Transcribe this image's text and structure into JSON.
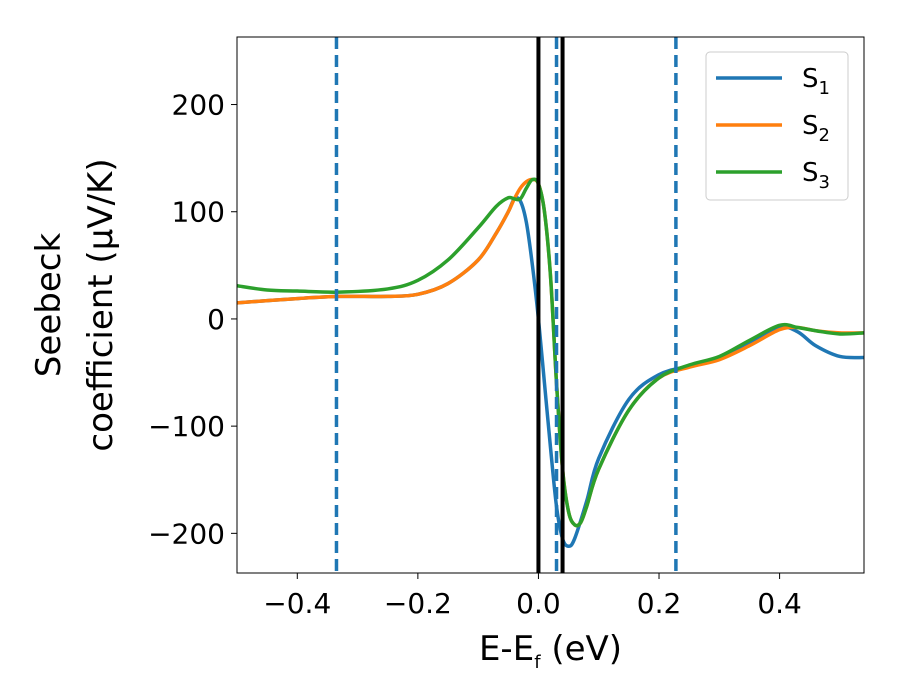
{
  "chart_data": {
    "type": "line",
    "xlabel": {
      "main": "E-E",
      "sub": "f",
      "unit": " (eV)"
    },
    "ylabel": {
      "line1": "Seebeck",
      "line2": "coefficient  (μV/K)"
    },
    "xlim": [
      -0.5,
      0.54
    ],
    "ylim": [
      -237,
      263
    ],
    "xticks": [
      -0.4,
      -0.2,
      0.0,
      0.2,
      0.4
    ],
    "xtick_labels": [
      "−0.4",
      "−0.2",
      "0.0",
      "0.2",
      "0.4"
    ],
    "yticks": [
      -200,
      -100,
      0,
      100,
      200
    ],
    "ytick_labels": [
      "−200",
      "−100",
      "0",
      "100",
      "200"
    ],
    "grid": false,
    "legend_position": "top-right",
    "series": [
      {
        "name": "S",
        "sub": "1",
        "color": "#1f77b4",
        "x": [
          -0.5,
          -0.4,
          -0.33,
          -0.25,
          -0.2,
          -0.15,
          -0.1,
          -0.07,
          -0.05,
          -0.04,
          -0.03,
          -0.02,
          -0.01,
          0.0,
          0.01,
          0.02,
          0.03,
          0.04,
          0.05,
          0.06,
          0.08,
          0.1,
          0.15,
          0.2,
          0.25,
          0.3,
          0.35,
          0.4,
          0.43,
          0.46,
          0.5,
          0.54
        ],
        "y": [
          15,
          19,
          21,
          21,
          23,
          33,
          55,
          80,
          100,
          112,
          110,
          90,
          50,
          0,
          -60,
          -120,
          -175,
          -205,
          -212,
          -205,
          -170,
          -130,
          -75,
          -52,
          -44,
          -36,
          -22,
          -8,
          -12,
          -25,
          -35,
          -36
        ]
      },
      {
        "name": "S",
        "sub": "2",
        "color": "#ff7f0e",
        "x": [
          -0.5,
          -0.4,
          -0.33,
          -0.25,
          -0.2,
          -0.15,
          -0.1,
          -0.07,
          -0.05,
          -0.04,
          -0.03,
          -0.02,
          -0.01,
          0.0,
          0.01,
          0.02,
          0.03,
          0.04,
          0.05,
          0.06,
          0.07,
          0.08,
          0.1,
          0.15,
          0.2,
          0.25,
          0.3,
          0.35,
          0.4,
          0.43,
          0.46,
          0.5,
          0.54
        ],
        "y": [
          15,
          19,
          21,
          21,
          23,
          33,
          55,
          80,
          100,
          112,
          122,
          128,
          130,
          126,
          100,
          40,
          -60,
          -140,
          -180,
          -192,
          -190,
          -175,
          -140,
          -85,
          -55,
          -45,
          -38,
          -25,
          -10,
          -8,
          -11,
          -13,
          -13
        ]
      },
      {
        "name": "S",
        "sub": "3",
        "color": "#2ca02c",
        "x": [
          -0.5,
          -0.45,
          -0.4,
          -0.33,
          -0.25,
          -0.2,
          -0.15,
          -0.1,
          -0.07,
          -0.05,
          -0.04,
          -0.03,
          -0.02,
          -0.01,
          0.0,
          0.01,
          0.02,
          0.03,
          0.04,
          0.05,
          0.06,
          0.07,
          0.08,
          0.1,
          0.15,
          0.2,
          0.25,
          0.3,
          0.35,
          0.4,
          0.43,
          0.46,
          0.5,
          0.54
        ],
        "y": [
          31,
          27,
          26,
          25,
          28,
          36,
          55,
          85,
          105,
          113,
          112,
          112,
          122,
          130,
          126,
          100,
          40,
          -60,
          -140,
          -180,
          -192,
          -190,
          -175,
          -140,
          -85,
          -55,
          -43,
          -35,
          -20,
          -6,
          -8,
          -11,
          -14,
          -13
        ]
      }
    ],
    "vlines_dashed": {
      "color": "#1f77b4",
      "x": [
        -0.335,
        0.03,
        0.228
      ]
    },
    "vlines_solid": {
      "color": "#000000",
      "x": [
        0.0,
        0.04
      ]
    }
  }
}
